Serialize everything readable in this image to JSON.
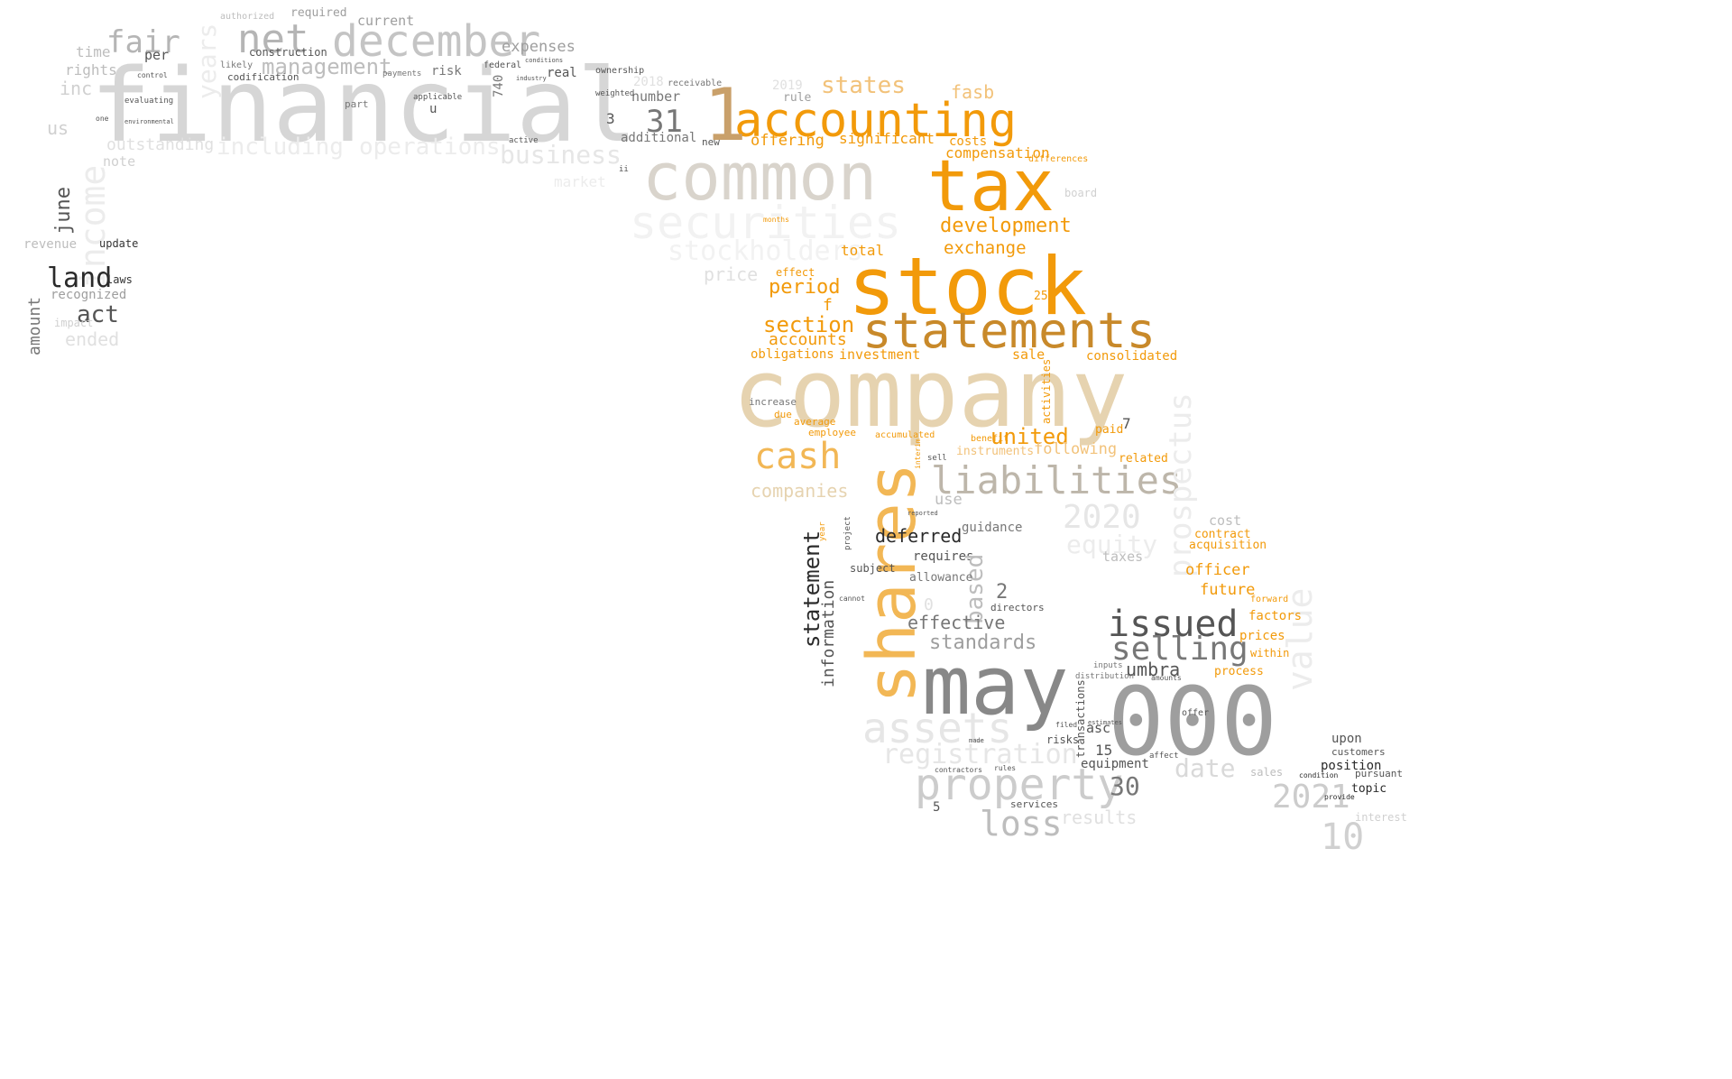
{
  "palette": {
    "gray_faint": "#ececec",
    "gray_light": "#d9d9d9",
    "gray_mid": "#bdbdbd",
    "gray": "#9e9e9e",
    "gray_dark": "#6e6e6e",
    "charcoal": "#2a2a2a",
    "beige": "#e6d3b0",
    "tan": "#c9a06a",
    "orange": "#f29a0a",
    "orange_light": "#f2b755",
    "bronze": "#c8892a"
  },
  "words": [
    {
      "text": "financial",
      "color": "#d6d6d6"
    },
    {
      "text": "december",
      "color": "#c4c4c4"
    },
    {
      "text": "net",
      "color": "#b5b5b5"
    },
    {
      "text": "fair",
      "color": "#b5b5b5"
    },
    {
      "text": "management",
      "color": "#bdbdbd"
    },
    {
      "text": "income",
      "color": "#ececec"
    },
    {
      "text": "years",
      "color": "#ececec"
    },
    {
      "text": "land",
      "color": "#2a2a2a"
    },
    {
      "text": "act",
      "color": "#555555"
    },
    {
      "text": "june",
      "color": "#555555"
    },
    {
      "text": "amount",
      "color": "#777777"
    },
    {
      "text": "recognized",
      "color": "#9e9e9e"
    },
    {
      "text": "laws",
      "color": "#333333"
    },
    {
      "text": "update",
      "color": "#333333"
    },
    {
      "text": "revenue",
      "color": "#bdbdbd"
    },
    {
      "text": "ended",
      "color": "#e0e0e0"
    },
    {
      "text": "impact",
      "color": "#d0d0d0"
    },
    {
      "text": "us",
      "color": "#d0d0d0"
    },
    {
      "text": "inc",
      "color": "#d0d0d0"
    },
    {
      "text": "time",
      "color": "#bdbdbd"
    },
    {
      "text": "rights",
      "color": "#bdbdbd"
    },
    {
      "text": "per",
      "color": "#555555"
    },
    {
      "text": "expenses",
      "color": "#9e9e9e"
    },
    {
      "text": "current",
      "color": "#9e9e9e"
    },
    {
      "text": "required",
      "color": "#9e9e9e"
    },
    {
      "text": "authorized",
      "color": "#bdbdbd"
    },
    {
      "text": "construction",
      "color": "#555555"
    },
    {
      "text": "codification",
      "color": "#555555"
    },
    {
      "text": "likely",
      "color": "#777777"
    },
    {
      "text": "risk",
      "color": "#777777"
    },
    {
      "text": "federal",
      "color": "#555555"
    },
    {
      "text": "real",
      "color": "#555555"
    },
    {
      "text": "payments",
      "color": "#777777"
    },
    {
      "text": "outstanding",
      "color": "#e0e0e0"
    },
    {
      "text": "including",
      "color": "#ececec"
    },
    {
      "text": "operations",
      "color": "#ececec"
    },
    {
      "text": "business",
      "color": "#e6e6e6"
    },
    {
      "text": "note",
      "color": "#d0d0d0"
    },
    {
      "text": "market",
      "color": "#ececec"
    },
    {
      "text": "evaluating",
      "color": "#555555"
    },
    {
      "text": "accounting",
      "color": "#f29a0a"
    },
    {
      "text": "1",
      "color": "#c9a06a"
    },
    {
      "text": "31",
      "color": "#777777"
    },
    {
      "text": "3",
      "color": "#555555"
    },
    {
      "text": "additional",
      "color": "#777777"
    },
    {
      "text": "number",
      "color": "#777777"
    },
    {
      "text": "740",
      "color": "#777777"
    },
    {
      "text": "2019",
      "color": "#e0e0e0"
    },
    {
      "text": "2018",
      "color": "#e0e0e0"
    },
    {
      "text": "rule",
      "color": "#9e9e9e"
    },
    {
      "text": "states",
      "color": "#f2c27a"
    },
    {
      "text": "fasb",
      "color": "#f2c27a"
    },
    {
      "text": "significant",
      "color": "#f29a0a"
    },
    {
      "text": "offering",
      "color": "#f29a0a"
    },
    {
      "text": "costs",
      "color": "#f29a0a"
    },
    {
      "text": "compensation",
      "color": "#f29a0a"
    },
    {
      "text": "common",
      "color": "#d9d4cc"
    },
    {
      "text": "tax",
      "color": "#f29a0a"
    },
    {
      "text": "securities",
      "color": "#f2f2f2"
    },
    {
      "text": "stockholders",
      "color": "#f2f2f2"
    },
    {
      "text": "development",
      "color": "#f29a0a"
    },
    {
      "text": "exchange",
      "color": "#f29a0a"
    },
    {
      "text": "stock",
      "color": "#f29a0a"
    },
    {
      "text": "total",
      "color": "#f29a0a"
    },
    {
      "text": "period",
      "color": "#f29a0a"
    },
    {
      "text": "section",
      "color": "#f29a0a"
    },
    {
      "text": "accounts",
      "color": "#f29a0a"
    },
    {
      "text": "statements",
      "color": "#c8892a"
    },
    {
      "text": "investment",
      "color": "#f29a0a"
    },
    {
      "text": "obligations",
      "color": "#f29a0a"
    },
    {
      "text": "sale",
      "color": "#f29a0a"
    },
    {
      "text": "consolidated",
      "color": "#f29a0a"
    },
    {
      "text": "effect",
      "color": "#f29a0a"
    },
    {
      "text": "price",
      "color": "#e0e0e0"
    },
    {
      "text": "f",
      "color": "#f29a0a"
    },
    {
      "text": "company",
      "color": "#e6d3b0"
    },
    {
      "text": "cash",
      "color": "#f2b755"
    },
    {
      "text": "shares",
      "color": "#f2b755"
    },
    {
      "text": "united",
      "color": "#f29a0a"
    },
    {
      "text": "following",
      "color": "#f2c27a"
    },
    {
      "text": "instruments",
      "color": "#f2c27a"
    },
    {
      "text": "liabilities",
      "color": "#bdb6aa"
    },
    {
      "text": "companies",
      "color": "#e6d3b0"
    },
    {
      "text": "related",
      "color": "#f29a0a"
    },
    {
      "text": "paid",
      "color": "#f29a0a"
    },
    {
      "text": "7",
      "color": "#555555"
    },
    {
      "text": "accumulated",
      "color": "#f29a0a"
    },
    {
      "text": "employee",
      "color": "#f29a0a"
    },
    {
      "text": "average",
      "color": "#f29a0a"
    },
    {
      "text": "due",
      "color": "#f29a0a"
    },
    {
      "text": "increase",
      "color": "#777777"
    },
    {
      "text": "benefit",
      "color": "#f29a0a"
    },
    {
      "text": "activities",
      "color": "#f29a0a"
    },
    {
      "text": "prospectus",
      "color": "#ececec"
    },
    {
      "text": "2020",
      "color": "#e6e6e6"
    },
    {
      "text": "equity",
      "color": "#ececec"
    },
    {
      "text": "use",
      "color": "#bdbdbd"
    },
    {
      "text": "statement",
      "color": "#2a2a2a"
    },
    {
      "text": "information",
      "color": "#555555"
    },
    {
      "text": "deferred",
      "color": "#2a2a2a"
    },
    {
      "text": "guidance",
      "color": "#777777"
    },
    {
      "text": "requires",
      "color": "#555555"
    },
    {
      "text": "based",
      "color": "#bdbdbd"
    },
    {
      "text": "allowance",
      "color": "#777777"
    },
    {
      "text": "2",
      "color": "#777777"
    },
    {
      "text": "effective",
      "color": "#777777"
    },
    {
      "text": "standards",
      "color": "#9e9e9e"
    },
    {
      "text": "subject",
      "color": "#555555"
    },
    {
      "text": "issued",
      "color": "#555555"
    },
    {
      "text": "selling",
      "color": "#777777"
    },
    {
      "text": "umbra",
      "color": "#555555"
    },
    {
      "text": "may",
      "color": "#888888"
    },
    {
      "text": "000",
      "color": "#9e9e9e"
    },
    {
      "text": "value",
      "color": "#ececec"
    },
    {
      "text": "taxes",
      "color": "#bdbdbd"
    },
    {
      "text": "cost",
      "color": "#bdbdbd"
    },
    {
      "text": "contract",
      "color": "#f29a0a"
    },
    {
      "text": "acquisition",
      "color": "#f29a0a"
    },
    {
      "text": "officer",
      "color": "#f29a0a"
    },
    {
      "text": "future",
      "color": "#f29a0a"
    },
    {
      "text": "factors",
      "color": "#f29a0a"
    },
    {
      "text": "prices",
      "color": "#f29a0a"
    },
    {
      "text": "within",
      "color": "#f29a0a"
    },
    {
      "text": "process",
      "color": "#f29a0a"
    },
    {
      "text": "assets",
      "color": "#e6e6e6"
    },
    {
      "text": "registration",
      "color": "#e6e6e6"
    },
    {
      "text": "property",
      "color": "#cccccc"
    },
    {
      "text": "30",
      "color": "#777777"
    },
    {
      "text": "loss",
      "color": "#bdbdbd"
    },
    {
      "text": "date",
      "color": "#d9d9d9"
    },
    {
      "text": "results",
      "color": "#e0e0e0"
    },
    {
      "text": "2021",
      "color": "#cccccc"
    },
    {
      "text": "10",
      "color": "#d0d0d0"
    },
    {
      "text": "5",
      "color": "#555555"
    },
    {
      "text": "15",
      "color": "#555555"
    },
    {
      "text": "asc",
      "color": "#555555"
    },
    {
      "text": "equipment",
      "color": "#555555"
    },
    {
      "text": "transactions",
      "color": "#555555"
    },
    {
      "text": "risks",
      "color": "#555555"
    },
    {
      "text": "upon",
      "color": "#555555"
    },
    {
      "text": "customers",
      "color": "#555555"
    },
    {
      "text": "position",
      "color": "#2a2a2a"
    },
    {
      "text": "pursuant",
      "color": "#555555"
    },
    {
      "text": "topic",
      "color": "#2a2a2a"
    },
    {
      "text": "interest",
      "color": "#d0d0d0"
    },
    {
      "text": "directors",
      "color": "#555555"
    },
    {
      "text": "0",
      "color": "#e0e0e0"
    },
    {
      "text": "25",
      "color": "#f29a0a"
    },
    {
      "text": "board",
      "color": "#d0d0d0"
    },
    {
      "text": "differences",
      "color": "#f29a0a"
    },
    {
      "text": "months",
      "color": "#f29a0a"
    },
    {
      "text": "ii",
      "color": "#555555"
    },
    {
      "text": "u",
      "color": "#555555"
    },
    {
      "text": "new",
      "color": "#555555"
    },
    {
      "text": "active",
      "color": "#555555"
    },
    {
      "text": "receivable",
      "color": "#777777"
    },
    {
      "text": "part",
      "color": "#777777"
    },
    {
      "text": "ownership",
      "color": "#555555"
    },
    {
      "text": "applicable",
      "color": "#555555"
    },
    {
      "text": "weighted",
      "color": "#555555"
    },
    {
      "text": "conditions",
      "color": "#555555"
    },
    {
      "text": "industry",
      "color": "#555555"
    },
    {
      "text": "control",
      "color": "#555555"
    },
    {
      "text": "environmental",
      "color": "#555555"
    },
    {
      "text": "one",
      "color": "#555555"
    },
    {
      "text": "services",
      "color": "#555555"
    },
    {
      "text": "contractors",
      "color": "#555555"
    },
    {
      "text": "rules",
      "color": "#555555"
    },
    {
      "text": "offer",
      "color": "#555555"
    },
    {
      "text": "made",
      "color": "#555555"
    },
    {
      "text": "filed",
      "color": "#555555"
    },
    {
      "text": "affect",
      "color": "#555555"
    },
    {
      "text": "sales",
      "color": "#bdbdbd"
    },
    {
      "text": "condition",
      "color": "#2a2a2a"
    },
    {
      "text": "provide",
      "color": "#2a2a2a"
    },
    {
      "text": "reported",
      "color": "#555555"
    },
    {
      "text": "cannot",
      "color": "#555555"
    },
    {
      "text": "project",
      "color": "#555555"
    },
    {
      "text": "year",
      "color": "#f29a0a"
    },
    {
      "text": "sell",
      "color": "#555555"
    },
    {
      "text": "interim",
      "color": "#f29a0a"
    },
    {
      "text": "forward",
      "color": "#f29a0a"
    },
    {
      "text": "inputs",
      "color": "#777777"
    },
    {
      "text": "distribution",
      "color": "#777777"
    },
    {
      "text": "amounts",
      "color": "#555555"
    },
    {
      "text": "estimates",
      "color": "#555555"
    }
  ]
}
